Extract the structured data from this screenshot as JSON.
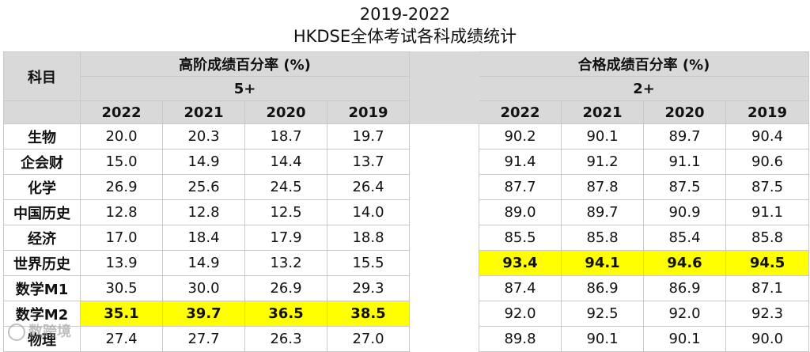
{
  "title": {
    "line1": "2019-2022",
    "line2": "HKDSE全体考试各科成绩统计"
  },
  "header": {
    "subject_label": "科目",
    "group_high": {
      "label": "高阶成绩百分率 (%)",
      "level": "5+"
    },
    "group_pass": {
      "label": "合格成绩百分率 (%)",
      "level": "2+"
    },
    "years": [
      "2022",
      "2021",
      "2020",
      "2019"
    ]
  },
  "rows": [
    {
      "subject": "生物",
      "high": [
        "20.0",
        "20.3",
        "18.7",
        "19.7"
      ],
      "pass": [
        "90.2",
        "90.1",
        "89.7",
        "90.4"
      ]
    },
    {
      "subject": "企会财",
      "high": [
        "15.0",
        "14.9",
        "14.4",
        "13.7"
      ],
      "pass": [
        "91.4",
        "91.2",
        "91.1",
        "90.6"
      ]
    },
    {
      "subject": "化学",
      "high": [
        "26.9",
        "25.6",
        "24.5",
        "26.4"
      ],
      "pass": [
        "87.7",
        "87.8",
        "87.5",
        "87.5"
      ]
    },
    {
      "subject": "中国历史",
      "high": [
        "12.8",
        "12.8",
        "12.5",
        "14.0"
      ],
      "pass": [
        "89.0",
        "89.7",
        "90.9",
        "91.1"
      ]
    },
    {
      "subject": "经济",
      "high": [
        "17.0",
        "18.4",
        "17.9",
        "18.8"
      ],
      "pass": [
        "85.5",
        "85.8",
        "85.4",
        "85.8"
      ]
    },
    {
      "subject": "世界历史",
      "high": [
        "13.9",
        "14.9",
        "13.2",
        "15.5"
      ],
      "pass": [
        "93.4",
        "94.1",
        "94.6",
        "94.5"
      ]
    },
    {
      "subject": "数学M1",
      "high": [
        "30.5",
        "30.0",
        "26.9",
        "29.3"
      ],
      "pass": [
        "87.4",
        "86.9",
        "86.9",
        "87.1"
      ]
    },
    {
      "subject": "数学M2",
      "high": [
        "35.1",
        "39.7",
        "36.5",
        "38.5"
      ],
      "pass": [
        "92.0",
        "92.5",
        "92.0",
        "92.3"
      ]
    },
    {
      "subject": "物理",
      "high": [
        "27.4",
        "27.7",
        "26.3",
        "27.0"
      ],
      "pass": [
        "89.8",
        "90.1",
        "90.1",
        "90.0"
      ]
    }
  ],
  "highlights": {
    "color": "#ffff00",
    "high_row_subject": "数学M2",
    "pass_row_subject": "世界历史"
  },
  "watermark": {
    "text": "数跨境",
    "icon": "circle-logo-icon"
  }
}
